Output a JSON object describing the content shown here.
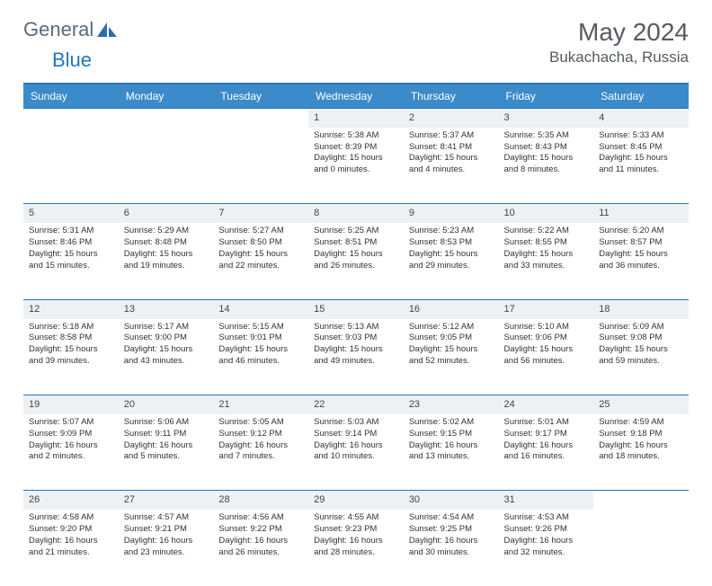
{
  "logo": {
    "text1": "General",
    "text2": "Blue"
  },
  "title": "May 2024",
  "location": "Bukachacha, Russia",
  "colors": {
    "header_bg": "#3b8aca",
    "header_text": "#ffffff",
    "border": "#2a75b3",
    "daynum_bg": "#eef1f3",
    "text": "#333333",
    "title_color": "#555b61"
  },
  "daysOfWeek": [
    "Sunday",
    "Monday",
    "Tuesday",
    "Wednesday",
    "Thursday",
    "Friday",
    "Saturday"
  ],
  "weeks": [
    [
      null,
      null,
      null,
      {
        "n": "1",
        "sr": "5:38 AM",
        "ss": "8:39 PM",
        "dl": "15 hours and 0 minutes."
      },
      {
        "n": "2",
        "sr": "5:37 AM",
        "ss": "8:41 PM",
        "dl": "15 hours and 4 minutes."
      },
      {
        "n": "3",
        "sr": "5:35 AM",
        "ss": "8:43 PM",
        "dl": "15 hours and 8 minutes."
      },
      {
        "n": "4",
        "sr": "5:33 AM",
        "ss": "8:45 PM",
        "dl": "15 hours and 11 minutes."
      }
    ],
    [
      {
        "n": "5",
        "sr": "5:31 AM",
        "ss": "8:46 PM",
        "dl": "15 hours and 15 minutes."
      },
      {
        "n": "6",
        "sr": "5:29 AM",
        "ss": "8:48 PM",
        "dl": "15 hours and 19 minutes."
      },
      {
        "n": "7",
        "sr": "5:27 AM",
        "ss": "8:50 PM",
        "dl": "15 hours and 22 minutes."
      },
      {
        "n": "8",
        "sr": "5:25 AM",
        "ss": "8:51 PM",
        "dl": "15 hours and 26 minutes."
      },
      {
        "n": "9",
        "sr": "5:23 AM",
        "ss": "8:53 PM",
        "dl": "15 hours and 29 minutes."
      },
      {
        "n": "10",
        "sr": "5:22 AM",
        "ss": "8:55 PM",
        "dl": "15 hours and 33 minutes."
      },
      {
        "n": "11",
        "sr": "5:20 AM",
        "ss": "8:57 PM",
        "dl": "15 hours and 36 minutes."
      }
    ],
    [
      {
        "n": "12",
        "sr": "5:18 AM",
        "ss": "8:58 PM",
        "dl": "15 hours and 39 minutes."
      },
      {
        "n": "13",
        "sr": "5:17 AM",
        "ss": "9:00 PM",
        "dl": "15 hours and 43 minutes."
      },
      {
        "n": "14",
        "sr": "5:15 AM",
        "ss": "9:01 PM",
        "dl": "15 hours and 46 minutes."
      },
      {
        "n": "15",
        "sr": "5:13 AM",
        "ss": "9:03 PM",
        "dl": "15 hours and 49 minutes."
      },
      {
        "n": "16",
        "sr": "5:12 AM",
        "ss": "9:05 PM",
        "dl": "15 hours and 52 minutes."
      },
      {
        "n": "17",
        "sr": "5:10 AM",
        "ss": "9:06 PM",
        "dl": "15 hours and 56 minutes."
      },
      {
        "n": "18",
        "sr": "5:09 AM",
        "ss": "9:08 PM",
        "dl": "15 hours and 59 minutes."
      }
    ],
    [
      {
        "n": "19",
        "sr": "5:07 AM",
        "ss": "9:09 PM",
        "dl": "16 hours and 2 minutes."
      },
      {
        "n": "20",
        "sr": "5:06 AM",
        "ss": "9:11 PM",
        "dl": "16 hours and 5 minutes."
      },
      {
        "n": "21",
        "sr": "5:05 AM",
        "ss": "9:12 PM",
        "dl": "16 hours and 7 minutes."
      },
      {
        "n": "22",
        "sr": "5:03 AM",
        "ss": "9:14 PM",
        "dl": "16 hours and 10 minutes."
      },
      {
        "n": "23",
        "sr": "5:02 AM",
        "ss": "9:15 PM",
        "dl": "16 hours and 13 minutes."
      },
      {
        "n": "24",
        "sr": "5:01 AM",
        "ss": "9:17 PM",
        "dl": "16 hours and 16 minutes."
      },
      {
        "n": "25",
        "sr": "4:59 AM",
        "ss": "9:18 PM",
        "dl": "16 hours and 18 minutes."
      }
    ],
    [
      {
        "n": "26",
        "sr": "4:58 AM",
        "ss": "9:20 PM",
        "dl": "16 hours and 21 minutes."
      },
      {
        "n": "27",
        "sr": "4:57 AM",
        "ss": "9:21 PM",
        "dl": "16 hours and 23 minutes."
      },
      {
        "n": "28",
        "sr": "4:56 AM",
        "ss": "9:22 PM",
        "dl": "16 hours and 26 minutes."
      },
      {
        "n": "29",
        "sr": "4:55 AM",
        "ss": "9:23 PM",
        "dl": "16 hours and 28 minutes."
      },
      {
        "n": "30",
        "sr": "4:54 AM",
        "ss": "9:25 PM",
        "dl": "16 hours and 30 minutes."
      },
      {
        "n": "31",
        "sr": "4:53 AM",
        "ss": "9:26 PM",
        "dl": "16 hours and 32 minutes."
      },
      null
    ]
  ]
}
